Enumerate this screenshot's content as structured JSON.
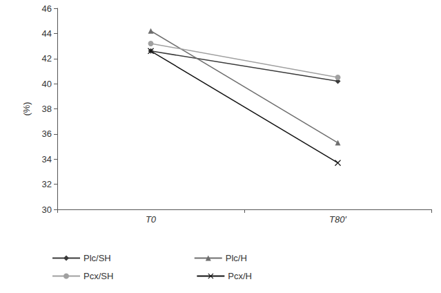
{
  "chart_data": {
    "type": "line",
    "y_label": "(%)",
    "categories": [
      "T0",
      "T80′"
    ],
    "ylim": [
      30,
      46
    ],
    "yticks": [
      30,
      32,
      34,
      36,
      38,
      40,
      42,
      44,
      46
    ],
    "grid": false,
    "legend": "bottom",
    "series": [
      {
        "name": "Plc/SH",
        "color": "#3a3a3a",
        "marker": "diamond",
        "values": [
          42.6,
          40.2
        ]
      },
      {
        "name": "Plc/H",
        "color": "#6e6e6e",
        "marker": "triangle",
        "values": [
          44.2,
          35.3
        ]
      },
      {
        "name": "Pcx/SH",
        "color": "#a0a0a0",
        "marker": "circle",
        "values": [
          43.2,
          40.5
        ]
      },
      {
        "name": "Pcx/H",
        "color": "#111111",
        "marker": "x",
        "values": [
          42.6,
          33.7
        ]
      }
    ]
  }
}
